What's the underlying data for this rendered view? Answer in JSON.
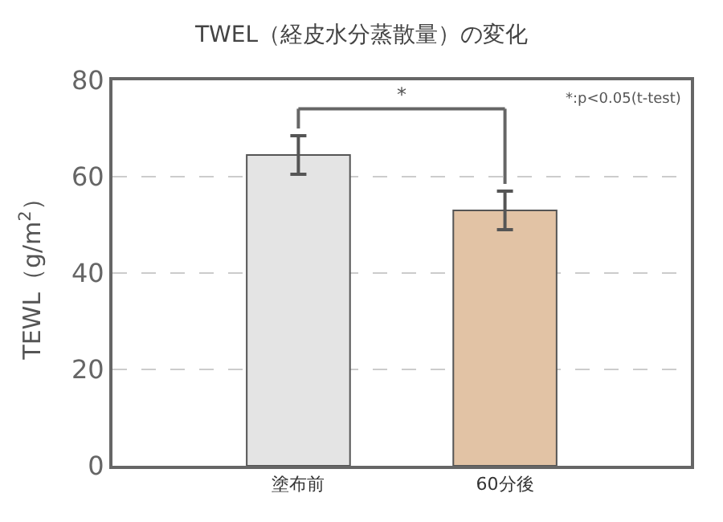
{
  "chart_data": {
    "type": "bar",
    "title": "TWEL（経皮水分蒸散量）の変化",
    "ylabel": "TEWL（g/m$^{2}$）",
    "categories": [
      "塗布前",
      "60分後"
    ],
    "values": [
      64.5,
      53
    ],
    "errors": [
      4,
      4
    ],
    "colors": [
      "#e4e4e4",
      "#e2c3a5"
    ],
    "ylim": [
      0,
      80
    ],
    "yticks": [
      0,
      20,
      40,
      60,
      80
    ],
    "grid": "y",
    "legend": false,
    "annotations": [
      "*:p<0.05(t-test)",
      "*"
    ]
  }
}
